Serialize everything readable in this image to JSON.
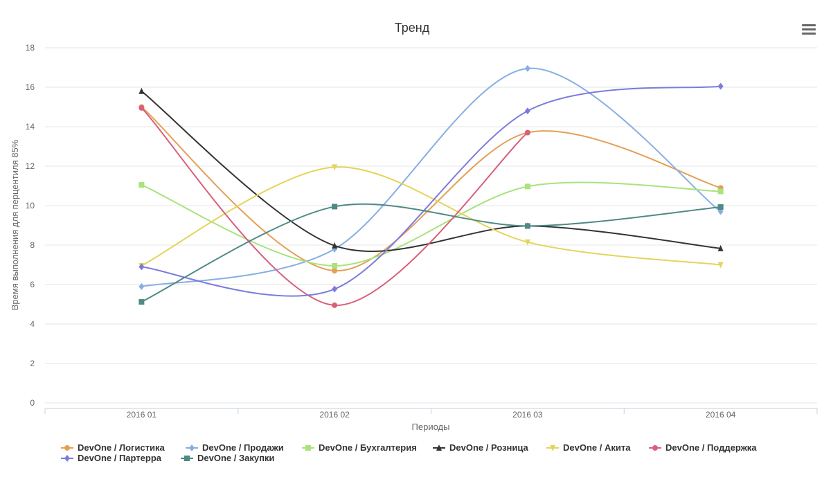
{
  "chart_data": {
    "type": "line",
    "title": "Тренд",
    "xlabel": "Периоды",
    "ylabel": "Время выполнения для перцентиля 85%",
    "categories": [
      "2016 01",
      "2016 02",
      "2016 03",
      "2016 04"
    ],
    "ylim": [
      0,
      18
    ],
    "yticks": [
      0,
      2,
      4,
      6,
      8,
      10,
      12,
      14,
      16,
      18
    ],
    "grid": true,
    "legend_position": "bottom",
    "series": [
      {
        "name": "DevOne / Логистика",
        "color": "#e59f55",
        "marker": "circle",
        "values": [
          15.0,
          6.7,
          13.7,
          10.9
        ]
      },
      {
        "name": "DevOne / Продажи",
        "color": "#86aee3",
        "marker": "diamond",
        "values": [
          5.9,
          7.8,
          16.95,
          9.7
        ]
      },
      {
        "name": "DevOne / Бухгалтерия",
        "color": "#a8e37d",
        "marker": "square",
        "values": [
          11.05,
          6.95,
          10.97,
          10.72
        ]
      },
      {
        "name": "DevOne / Розница",
        "color": "#333333",
        "marker": "triangle",
        "values": [
          15.8,
          7.97,
          8.97,
          7.83
        ]
      },
      {
        "name": "DevOne / Акита",
        "color": "#e5d45a",
        "marker": "triangle-down",
        "values": [
          6.95,
          11.95,
          8.15,
          7.0
        ]
      },
      {
        "name": "DevOne / Поддержка",
        "color": "#d95f7a",
        "marker": "circle",
        "values": [
          14.95,
          4.95,
          13.7,
          null
        ]
      },
      {
        "name": "DevOne / Партерра",
        "color": "#7b7bde",
        "marker": "diamond",
        "values": [
          6.9,
          5.77,
          14.8,
          16.05
        ]
      },
      {
        "name": "DevOne / Закупки",
        "color": "#4f8a85",
        "marker": "square",
        "values": [
          5.12,
          9.95,
          8.97,
          9.93
        ]
      }
    ]
  },
  "toolbar": {
    "menu_icon": "hamburger-menu-icon"
  }
}
